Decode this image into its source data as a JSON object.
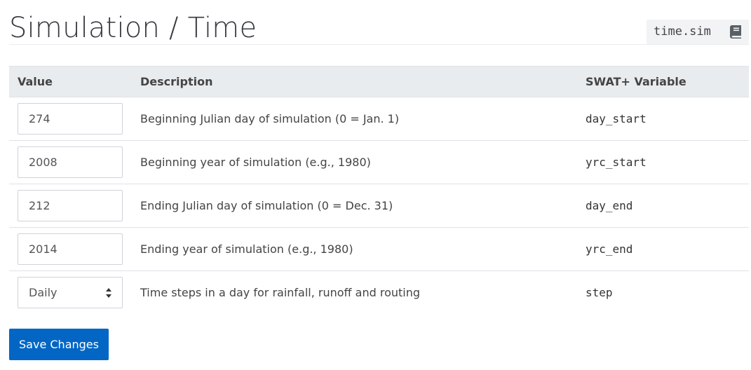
{
  "header": {
    "title": "Simulation / Time",
    "file_name": "time.sim",
    "file_icon": "book-icon"
  },
  "table": {
    "headers": {
      "value": "Value",
      "description": "Description",
      "variable": "SWAT+ Variable"
    },
    "rows": [
      {
        "value": "274",
        "description": "Beginning Julian day of simulation (0 = Jan. 1)",
        "variable": "day_start"
      },
      {
        "value": "2008",
        "description": "Beginning year of simulation (e.g., 1980)",
        "variable": "yrc_start"
      },
      {
        "value": "212",
        "description": "Ending Julian day of simulation (0 = Dec. 31)",
        "variable": "day_end"
      },
      {
        "value": "2014",
        "description": "Ending year of simulation (e.g., 1980)",
        "variable": "yrc_end"
      },
      {
        "value": "Daily",
        "description": "Time steps in a day for rainfall, runoff and routing",
        "variable": "step"
      }
    ]
  },
  "actions": {
    "save_label": "Save Changes"
  },
  "colors": {
    "primary_button": "#0366c5",
    "header_row_bg": "#e9ecef"
  }
}
